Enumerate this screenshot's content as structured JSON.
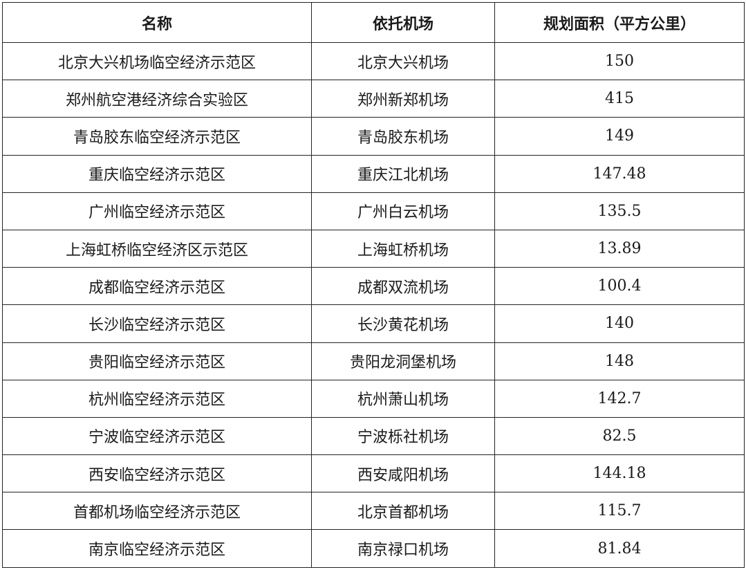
{
  "table": {
    "headers": [
      "名称",
      "依托机场",
      "规划面积（平方公里）"
    ],
    "rows": [
      [
        "北京大兴机场临空经济示范区",
        "北京大兴机场",
        "150"
      ],
      [
        "郑州航空港经济综合实验区",
        "郑州新郑机场",
        "415"
      ],
      [
        "青岛胶东临空经济示范区",
        "青岛胶东机场",
        "149"
      ],
      [
        "重庆临空经济示范区",
        "重庆江北机场",
        "147.48"
      ],
      [
        "广州临空经济示范区",
        "广州白云机场",
        "135.5"
      ],
      [
        "上海虹桥临空经济区示范区",
        "上海虹桥机场",
        "13.89"
      ],
      [
        "成都临空经济示范区",
        "成都双流机场",
        "100.4"
      ],
      [
        "长沙临空经济示范区",
        "长沙黄花机场",
        "140"
      ],
      [
        "贵阳临空经济示范区",
        "贵阳龙洞堡机场",
        "148"
      ],
      [
        "杭州临空经济示范区",
        "杭州萧山机场",
        "142.7"
      ],
      [
        "宁波临空经济示范区",
        "宁波栎社机场",
        "82.5"
      ],
      [
        "西安临空经济示范区",
        "西安咸阳机场",
        "144.18"
      ],
      [
        "首都机场临空经济示范区",
        "北京首都机场",
        "115.7"
      ],
      [
        "南京临空经济示范区",
        "南京禄口机场",
        "81.84"
      ]
    ]
  }
}
